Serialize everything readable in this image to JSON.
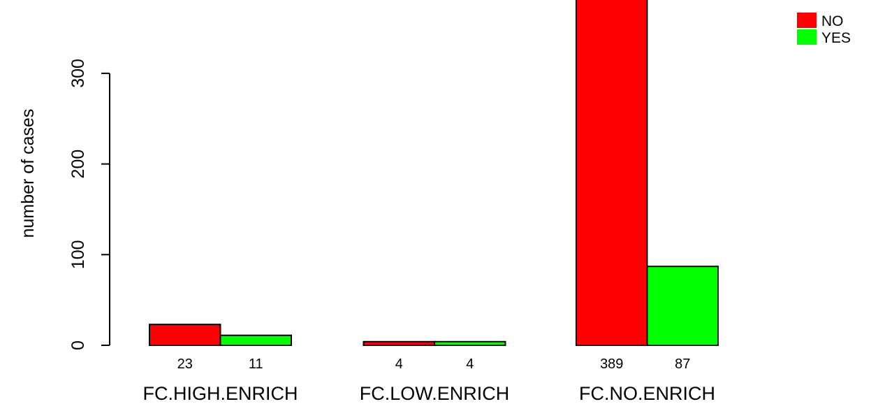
{
  "chart_data": {
    "type": "bar",
    "categories": [
      "FC.HIGH.ENRICH",
      "FC.LOW.ENRICH",
      "FC.NO.ENRICH"
    ],
    "series": [
      {
        "name": "NO",
        "values": [
          23,
          4,
          389
        ],
        "color": "#ff0000"
      },
      {
        "name": "YES",
        "values": [
          11,
          4,
          87
        ],
        "color": "#00ff00"
      }
    ],
    "data_labels": [
      [
        "23",
        "11"
      ],
      [
        "4",
        "4"
      ],
      [
        "389",
        "87"
      ]
    ],
    "title": "",
    "xlabel": "",
    "ylabel": "number of cases",
    "ylim": [
      0,
      389
    ],
    "yticks": [
      0,
      100,
      200,
      300
    ],
    "ytick_labels": [
      "0",
      "100",
      "200",
      "300"
    ],
    "legend": {
      "placement": "top-right",
      "entries": [
        "NO",
        "YES"
      ]
    },
    "grid": false
  }
}
